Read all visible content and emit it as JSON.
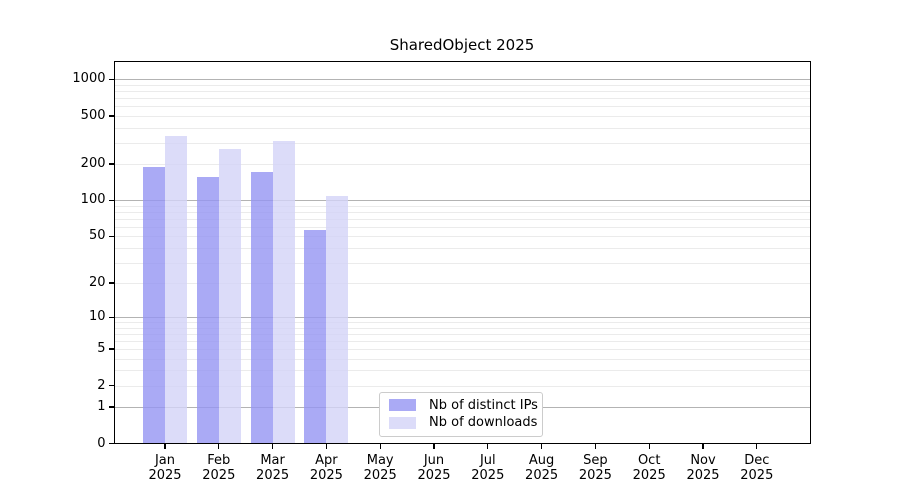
{
  "chart_data": {
    "type": "bar",
    "title": "SharedObject 2025",
    "categories": [
      "Jan 2025",
      "Feb 2025",
      "Mar 2025",
      "Apr 2025",
      "May 2025",
      "Jun 2025",
      "Jul 2025",
      "Aug 2025",
      "Sep 2025",
      "Oct 2025",
      "Nov 2025",
      "Dec 2025"
    ],
    "series": [
      {
        "name": "Nb of distinct IPs",
        "color": "#9595f3",
        "values": [
          188,
          156,
          172,
          57,
          0,
          0,
          0,
          0,
          0,
          0,
          0,
          0
        ]
      },
      {
        "name": "Nb of downloads",
        "color": "#d3d3f8",
        "values": [
          344,
          268,
          313,
          109,
          0,
          0,
          0,
          0,
          0,
          0,
          0,
          0
        ]
      }
    ],
    "xlabel": "",
    "ylabel": "",
    "y_scale": "log10(value+1)",
    "ylim": [
      0,
      1435
    ],
    "y_ticks": [
      0,
      1,
      2,
      5,
      10,
      20,
      50,
      100,
      200,
      500,
      1000
    ],
    "y_major_gridlines": [
      1,
      10,
      100,
      1000
    ],
    "y_minor_gridlines_pattern": "2,3,4,5,6,7,8,9 within each decade (2-9, 20-90, 200-900)",
    "grid": "on",
    "legend_position": "inside lower center",
    "colors": {
      "distinct_ips_bar": "#9595f3",
      "downloads_bar": "#d3d3f8",
      "major_grid": "#b3b3b3",
      "minor_grid": "#ebebeb",
      "axis": "#000000",
      "legend_border": "#cccccc",
      "background": "#ffffff"
    }
  }
}
